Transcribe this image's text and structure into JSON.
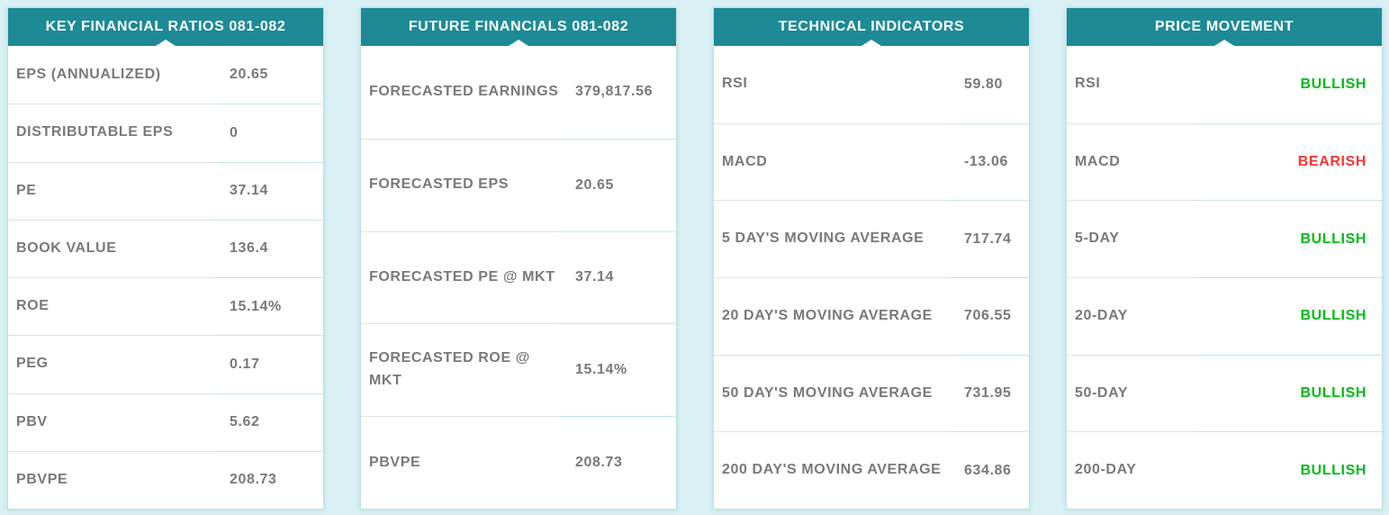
{
  "colors": {
    "header_teal": "#1e8a96",
    "page_background": "#d9f1f5",
    "label_gray": "#78797c",
    "bullish_green": "#00bb17",
    "bearish_red": "#fa3434"
  },
  "panels": [
    {
      "title": "KEY FINANCIAL RATIOS 081-082",
      "rows": [
        {
          "label": "EPS (ANNUALIZED)",
          "value": "20.65"
        },
        {
          "label": "DISTRIBUTABLE EPS",
          "value": "0"
        },
        {
          "label": "PE",
          "value": "37.14"
        },
        {
          "label": "BOOK VALUE",
          "value": "136.4"
        },
        {
          "label": "ROE",
          "value": "15.14%"
        },
        {
          "label": "PEG",
          "value": "0.17"
        },
        {
          "label": "PBV",
          "value": "5.62"
        },
        {
          "label": "PBVPE",
          "value": "208.73"
        }
      ]
    },
    {
      "title": "FUTURE FINANCIALS 081-082",
      "rows": [
        {
          "label": "FORECASTED EARNINGS",
          "value": "379,817.56"
        },
        {
          "label": "FORECASTED EPS",
          "value": "20.65"
        },
        {
          "label": "FORECASTED PE @ MKT",
          "value": "37.14"
        },
        {
          "label": "FORECASTED ROE @ MKT",
          "value": "15.14%"
        },
        {
          "label": "PBVPE",
          "value": "208.73"
        }
      ]
    },
    {
      "title": "TECHNICAL INDICATORS",
      "rows": [
        {
          "label": "RSI",
          "value": "59.80"
        },
        {
          "label": "MACD",
          "value": "-13.06"
        },
        {
          "label": "5 DAY'S MOVING AVERAGE",
          "value": "717.74"
        },
        {
          "label": "20 DAY'S MOVING AVERAGE",
          "value": "706.55"
        },
        {
          "label": "50 DAY'S MOVING AVERAGE",
          "value": "731.95"
        },
        {
          "label": "200 DAY'S MOVING AVERAGE",
          "value": "634.86"
        }
      ]
    },
    {
      "title": "PRICE MOVEMENT",
      "rows": [
        {
          "label": "RSI",
          "value": "BULLISH",
          "color": "#00bb17"
        },
        {
          "label": "MACD",
          "value": "BEARISH",
          "color": "#fa3434"
        },
        {
          "label": "5-DAY",
          "value": "BULLISH",
          "color": "#00bb17"
        },
        {
          "label": "20-DAY",
          "value": "BULLISH",
          "color": "#00bb17"
        },
        {
          "label": "50-DAY",
          "value": "BULLISH",
          "color": "#00bb17"
        },
        {
          "label": "200-DAY",
          "value": "BULLISH",
          "color": "#00bb17"
        }
      ]
    }
  ]
}
